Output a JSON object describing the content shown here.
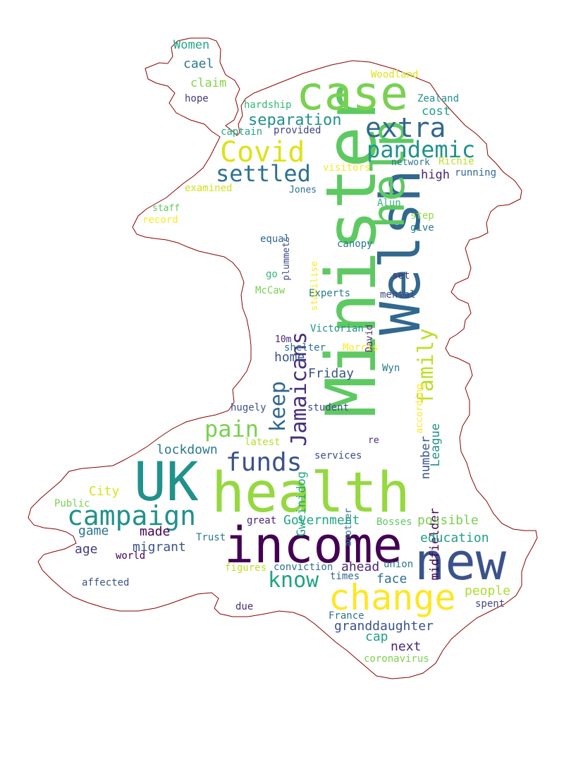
{
  "words": [
    {
      "text": "Minister",
      "color": "#5ec962",
      "vertical": true
    },
    {
      "text": "Welsh",
      "color": "#31688e",
      "vertical": true
    },
    {
      "text": "help",
      "color": "#5ec962",
      "vertical": true
    },
    {
      "text": "UK",
      "color": "#21918c"
    },
    {
      "text": "health",
      "color": "#95d840"
    },
    {
      "text": "income",
      "color": "#440154"
    },
    {
      "text": "new",
      "color": "#3b528b"
    },
    {
      "text": "case",
      "color": "#7ad151"
    },
    {
      "text": "change",
      "color": "#fde725"
    },
    {
      "text": "campaign",
      "color": "#21918c"
    },
    {
      "text": "extra",
      "color": "#31688e"
    },
    {
      "text": "pandemic",
      "color": "#21918c"
    },
    {
      "text": "Covid",
      "color": "#dde318"
    },
    {
      "text": "settled",
      "color": "#2c728e"
    },
    {
      "text": "funds",
      "color": "#3b528b"
    },
    {
      "text": "pain",
      "color": "#7ad151"
    },
    {
      "text": "keep",
      "color": "#31688e",
      "vertical": true
    },
    {
      "text": "Jamaicans",
      "color": "#472d7b",
      "vertical": true
    },
    {
      "text": "family",
      "color": "#bddf26",
      "vertical": true
    },
    {
      "text": "know",
      "color": "#20a386"
    },
    {
      "text": "separation",
      "color": "#21918c"
    },
    {
      "text": "Women",
      "color": "#22a884"
    },
    {
      "text": "cael",
      "color": "#2a788e"
    },
    {
      "text": "claim",
      "color": "#86d549"
    },
    {
      "text": "hope",
      "color": "#443a83"
    },
    {
      "text": "hardship",
      "color": "#35b779"
    },
    {
      "text": "provided",
      "color": "#414487"
    },
    {
      "text": "captain",
      "color": "#22a884"
    },
    {
      "text": "Woodland",
      "color": "#dde318"
    },
    {
      "text": "Zealand",
      "color": "#21918c"
    },
    {
      "text": "cost",
      "color": "#1f9e89"
    },
    {
      "text": "Richie",
      "color": "#bddf26"
    },
    {
      "text": "network",
      "color": "#2a788e"
    },
    {
      "text": "visitors",
      "color": "#fde725"
    },
    {
      "text": "high",
      "color": "#482475"
    },
    {
      "text": "running",
      "color": "#31688e"
    },
    {
      "text": "examined",
      "color": "#d2e21b"
    },
    {
      "text": "Jones",
      "color": "#2c728e"
    },
    {
      "text": "plummets",
      "color": "#3e4a89",
      "vertical": true
    },
    {
      "text": "stabilise",
      "color": "#fde725",
      "vertical": true
    },
    {
      "text": "staff",
      "color": "#5ec962"
    },
    {
      "text": "record",
      "color": "#fde725"
    },
    {
      "text": "Alun",
      "color": "#35b779"
    },
    {
      "text": "step",
      "color": "#95d840"
    },
    {
      "text": "give",
      "color": "#2a788e"
    },
    {
      "text": "equal",
      "color": "#31688e"
    },
    {
      "text": "canopy",
      "color": "#2a788e"
    },
    {
      "text": "go",
      "color": "#35b779"
    },
    {
      "text": "set",
      "color": "#46327e"
    },
    {
      "text": "McCaw",
      "color": "#7ad151"
    },
    {
      "text": "Experts",
      "color": "#2a788e"
    },
    {
      "text": "David",
      "color": "#472d7b",
      "vertical": true
    },
    {
      "text": "mental",
      "color": "#3e4a89"
    },
    {
      "text": "10m",
      "color": "#482878"
    },
    {
      "text": "Victorian",
      "color": "#21918c"
    },
    {
      "text": "shelter",
      "color": "#2c728e"
    },
    {
      "text": "Morris",
      "color": "#fde725"
    },
    {
      "text": "according",
      "color": "#fde725",
      "vertical": true
    },
    {
      "text": "home",
      "color": "#3b528b"
    },
    {
      "text": "Friday",
      "color": "#3b528b"
    },
    {
      "text": "Wyn",
      "color": "#2a788e"
    },
    {
      "text": "League",
      "color": "#21918c",
      "vertical": true
    },
    {
      "text": "number",
      "color": "#3b528b",
      "vertical": true
    },
    {
      "text": "midfielder",
      "color": "#440154",
      "vertical": true
    },
    {
      "text": "Gweinidog",
      "color": "#22a884",
      "vertical": true
    },
    {
      "text": "hugely",
      "color": "#3b528b"
    },
    {
      "text": "student",
      "color": "#3e4a89"
    },
    {
      "text": "latest",
      "color": "#b5de2b"
    },
    {
      "text": "re",
      "color": "#482878"
    },
    {
      "text": "lockdown",
      "color": "#2a788e"
    },
    {
      "text": "services",
      "color": "#3e4a89"
    },
    {
      "text": "City",
      "color": "#d8e219"
    },
    {
      "text": "Public",
      "color": "#7ad151"
    },
    {
      "text": "another",
      "color": "#2c728e",
      "vertical": true
    },
    {
      "text": "great",
      "color": "#482475"
    },
    {
      "text": "Government",
      "color": "#22a884"
    },
    {
      "text": "Bosses",
      "color": "#5ec962"
    },
    {
      "text": "possible",
      "color": "#7ad151"
    },
    {
      "text": "game",
      "color": "#2c728e"
    },
    {
      "text": "made",
      "color": "#440154"
    },
    {
      "text": "education",
      "color": "#1fa088"
    },
    {
      "text": "age",
      "color": "#443983"
    },
    {
      "text": "migrant",
      "color": "#3b528b"
    },
    {
      "text": "Trust",
      "color": "#2a788e"
    },
    {
      "text": "world",
      "color": "#440154"
    },
    {
      "text": "affected",
      "color": "#3b528b"
    },
    {
      "text": "figures",
      "color": "#c2df23"
    },
    {
      "text": "conviction",
      "color": "#2c728e"
    },
    {
      "text": "ahead",
      "color": "#482878"
    },
    {
      "text": "union",
      "color": "#2a788e"
    },
    {
      "text": "times",
      "color": "#31688e"
    },
    {
      "text": "face",
      "color": "#2c728e"
    },
    {
      "text": "people",
      "color": "#addc30"
    },
    {
      "text": "spent",
      "color": "#3e4a89"
    },
    {
      "text": "due",
      "color": "#472d7b"
    },
    {
      "text": "France",
      "color": "#2c728e"
    },
    {
      "text": "granddaughter",
      "color": "#3b528b"
    },
    {
      "text": "cap",
      "color": "#1f9e89"
    },
    {
      "text": "next",
      "color": "#482878"
    },
    {
      "text": "coronavirus",
      "color": "#7ad151"
    }
  ]
}
